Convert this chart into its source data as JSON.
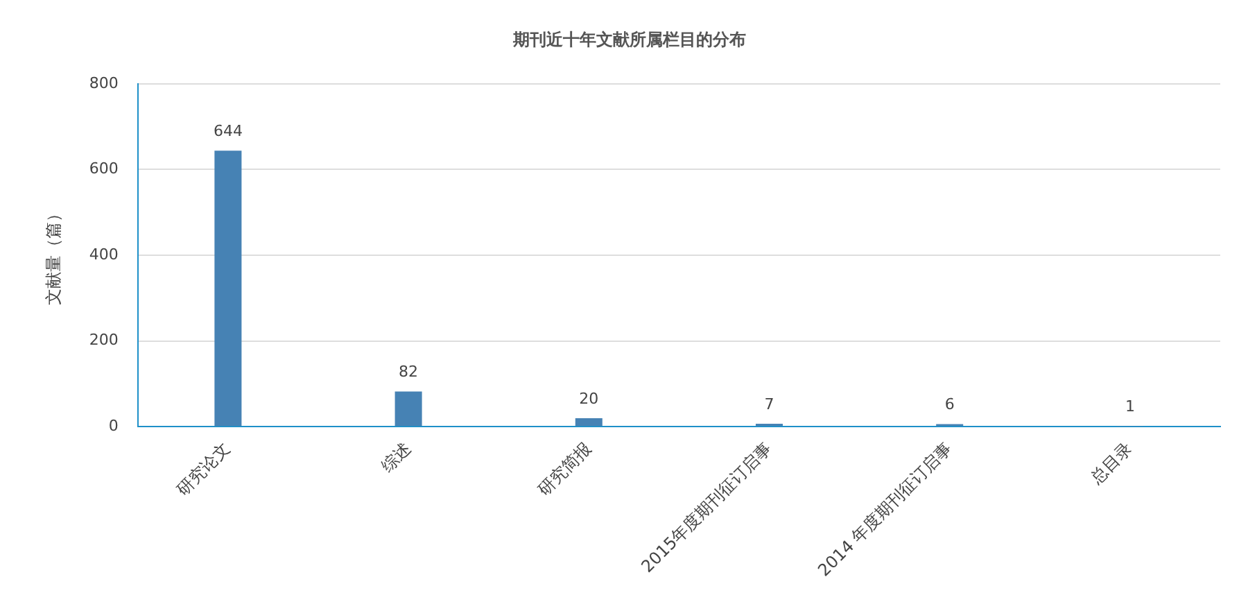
{
  "chart_data": {
    "type": "bar",
    "title": "期刊近十年文献所属栏目的分布",
    "ylabel": "文献量（篇）",
    "categories": [
      "研究论文",
      "综述",
      "研究简报",
      "2015年度期刊征订启事",
      "2014 年度期刊征订启事",
      "总目录"
    ],
    "values": [
      644,
      82,
      20,
      7,
      6,
      1
    ],
    "color": "#4682b4",
    "ylim": [
      0,
      800
    ],
    "yticks": [
      0,
      200,
      400,
      600,
      800
    ],
    "grid": "y",
    "data_labels": true,
    "legend": false
  }
}
